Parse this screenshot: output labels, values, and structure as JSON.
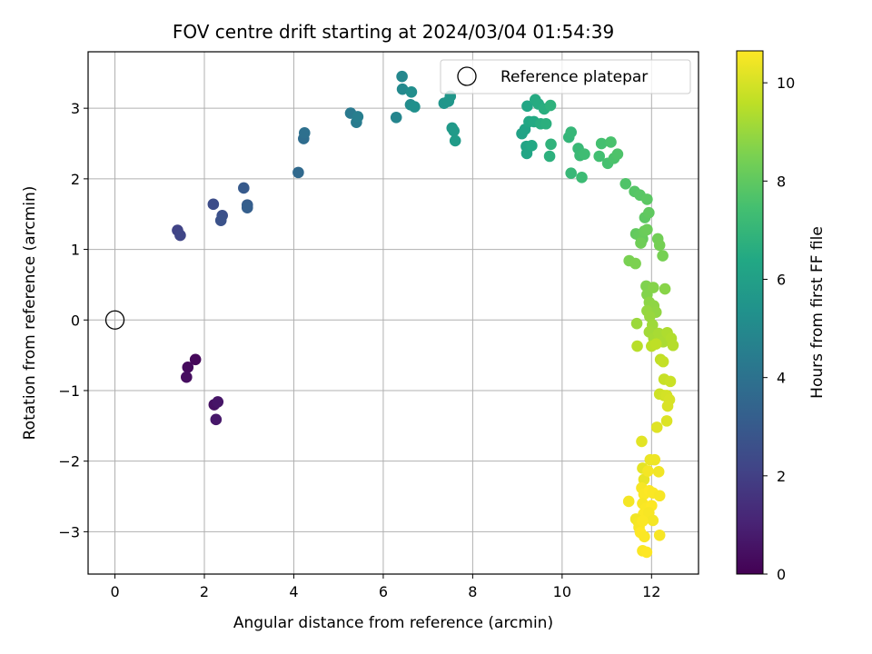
{
  "chart_data": {
    "type": "scatter",
    "title": "FOV centre drift starting at 2024/03/04 01:54:39",
    "xlabel": "Angular distance from reference (arcmin)",
    "ylabel": "Rotation from reference (arcmin)",
    "xlim": [
      -0.6,
      13.05
    ],
    "ylim": [
      -3.6,
      3.8
    ],
    "xticks": [
      0,
      2,
      4,
      6,
      8,
      10,
      12
    ],
    "yticks": [
      -3,
      -2,
      -1,
      0,
      1,
      2,
      3
    ],
    "xtick_labels": [
      "0",
      "2",
      "4",
      "6",
      "8",
      "10",
      "12"
    ],
    "ytick_labels": [
      "−3",
      "−2",
      "−1",
      "0",
      "1",
      "2",
      "3"
    ],
    "grid": true,
    "colormap": "viridis",
    "colorbar": {
      "label": "Hours from first FF file",
      "range": [
        0,
        10.65
      ],
      "ticks": [
        0,
        2,
        4,
        6,
        8,
        10
      ],
      "tick_labels": [
        "0",
        "2",
        "4",
        "6",
        "8",
        "10"
      ]
    },
    "legend": {
      "position": "top-right",
      "entries": [
        "Reference platepar"
      ]
    },
    "reference": {
      "label": "Reference platepar",
      "x": 0,
      "y": 0
    },
    "series": [
      {
        "name": "",
        "points": [
          [
            1.8,
            -0.56,
            0.2
          ],
          [
            1.63,
            -0.67,
            0.3
          ],
          [
            1.6,
            -0.81,
            0.4
          ],
          [
            2.22,
            -1.2,
            0.5
          ],
          [
            2.3,
            -1.16,
            0.6
          ],
          [
            2.26,
            -1.41,
            0.7
          ],
          [
            1.4,
            1.27,
            2.1
          ],
          [
            1.46,
            1.2,
            2.2
          ],
          [
            2.2,
            1.64,
            2.5
          ],
          [
            2.4,
            1.48,
            2.6
          ],
          [
            2.37,
            1.41,
            2.7
          ],
          [
            2.88,
            1.87,
            3.0
          ],
          [
            2.96,
            1.63,
            3.1
          ],
          [
            2.96,
            1.59,
            3.2
          ],
          [
            4.1,
            2.09,
            3.6
          ],
          [
            4.22,
            2.57,
            3.8
          ],
          [
            4.24,
            2.65,
            3.9
          ],
          [
            5.27,
            2.93,
            4.3
          ],
          [
            5.4,
            2.8,
            4.4
          ],
          [
            5.43,
            2.88,
            4.5
          ],
          [
            6.29,
            2.87,
            4.8
          ],
          [
            6.42,
            3.45,
            4.9
          ],
          [
            6.43,
            3.27,
            5.0
          ],
          [
            6.61,
            3.05,
            5.1
          ],
          [
            6.63,
            3.23,
            5.2
          ],
          [
            6.7,
            3.02,
            5.3
          ],
          [
            7.36,
            3.07,
            5.5
          ],
          [
            7.46,
            3.1,
            5.55
          ],
          [
            7.5,
            3.17,
            5.6
          ],
          [
            7.54,
            2.72,
            5.7
          ],
          [
            7.58,
            2.68,
            5.75
          ],
          [
            7.61,
            2.54,
            5.8
          ],
          [
            9.1,
            2.64,
            6.1
          ],
          [
            9.17,
            2.7,
            6.15
          ],
          [
            9.2,
            2.46,
            6.2
          ],
          [
            9.21,
            2.36,
            6.25
          ],
          [
            9.22,
            3.03,
            6.3
          ],
          [
            9.26,
            2.81,
            6.35
          ],
          [
            9.32,
            2.47,
            6.4
          ],
          [
            9.37,
            2.81,
            6.45
          ],
          [
            9.4,
            3.12,
            6.5
          ],
          [
            9.47,
            3.06,
            6.55
          ],
          [
            9.52,
            2.78,
            6.6
          ],
          [
            9.6,
            2.99,
            6.65
          ],
          [
            9.64,
            2.78,
            6.7
          ],
          [
            9.72,
            2.32,
            6.75
          ],
          [
            9.74,
            3.04,
            6.8
          ],
          [
            9.75,
            2.49,
            6.85
          ],
          [
            10.15,
            2.59,
            7.0
          ],
          [
            10.2,
            2.66,
            7.05
          ],
          [
            10.2,
            2.08,
            7.1
          ],
          [
            10.36,
            2.43,
            7.15
          ],
          [
            10.4,
            2.33,
            7.2
          ],
          [
            10.44,
            2.02,
            7.25
          ],
          [
            10.5,
            2.35,
            7.3
          ],
          [
            10.83,
            2.32,
            7.4
          ],
          [
            10.88,
            2.5,
            7.45
          ],
          [
            11.02,
            2.22,
            7.5
          ],
          [
            11.09,
            2.52,
            7.55
          ],
          [
            11.16,
            2.29,
            7.6
          ],
          [
            11.24,
            2.35,
            7.65
          ],
          [
            11.42,
            1.93,
            7.7
          ],
          [
            11.62,
            1.82,
            7.8
          ],
          [
            11.74,
            1.77,
            7.85
          ],
          [
            11.9,
            1.71,
            7.9
          ],
          [
            11.85,
            1.45,
            7.95
          ],
          [
            11.94,
            1.52,
            8.0
          ],
          [
            11.65,
            1.22,
            8.05
          ],
          [
            11.72,
            1.2,
            8.1
          ],
          [
            11.8,
            1.15,
            8.15
          ],
          [
            11.84,
            1.26,
            8.2
          ],
          [
            11.9,
            1.28,
            8.25
          ],
          [
            11.76,
            1.09,
            8.3
          ],
          [
            12.14,
            1.15,
            8.35
          ],
          [
            12.18,
            1.06,
            8.4
          ],
          [
            12.25,
            0.91,
            8.45
          ],
          [
            11.5,
            0.84,
            8.5
          ],
          [
            11.64,
            0.8,
            8.55
          ],
          [
            11.88,
            0.48,
            8.6
          ],
          [
            11.9,
            0.36,
            8.65
          ],
          [
            12.04,
            0.46,
            8.7
          ],
          [
            12.3,
            0.44,
            8.75
          ],
          [
            11.95,
            0.25,
            8.8
          ],
          [
            12.05,
            0.2,
            8.85
          ],
          [
            12.1,
            0.11,
            8.9
          ],
          [
            11.9,
            0.13,
            8.95
          ],
          [
            11.96,
            0.05,
            9.0
          ],
          [
            11.67,
            -0.05,
            9.05
          ],
          [
            12.02,
            -0.07,
            9.1
          ],
          [
            11.95,
            -0.17,
            9.15
          ],
          [
            12.05,
            -0.26,
            9.2
          ],
          [
            12.16,
            -0.19,
            9.25
          ],
          [
            12.26,
            -0.31,
            9.3
          ],
          [
            12.35,
            -0.18,
            9.35
          ],
          [
            12.44,
            -0.26,
            9.4
          ],
          [
            12.48,
            -0.36,
            9.45
          ],
          [
            11.68,
            -0.37,
            9.5
          ],
          [
            12.0,
            -0.37,
            9.55
          ],
          [
            12.1,
            -0.34,
            9.6
          ],
          [
            12.2,
            -0.56,
            9.65
          ],
          [
            12.26,
            -0.59,
            9.7
          ],
          [
            12.28,
            -0.84,
            9.75
          ],
          [
            12.42,
            -0.87,
            9.8
          ],
          [
            12.18,
            -1.05,
            9.85
          ],
          [
            12.28,
            -1.07,
            9.9
          ],
          [
            12.34,
            -1.07,
            9.95
          ],
          [
            12.4,
            -1.13,
            10.0
          ],
          [
            12.36,
            -1.22,
            10.05
          ],
          [
            12.34,
            -1.43,
            10.1
          ],
          [
            12.12,
            -1.52,
            10.15
          ],
          [
            11.78,
            -1.72,
            10.2
          ],
          [
            11.8,
            -2.1,
            10.25
          ],
          [
            11.83,
            -2.26,
            10.3
          ],
          [
            11.97,
            -1.98,
            10.35
          ],
          [
            12.07,
            -1.98,
            10.4
          ],
          [
            12.16,
            -2.15,
            10.45
          ],
          [
            11.92,
            -2.14,
            10.5
          ],
          [
            11.78,
            -2.38,
            10.55
          ],
          [
            11.83,
            -2.47,
            10.6
          ],
          [
            11.95,
            -2.42,
            10.65
          ],
          [
            12.03,
            -2.45,
            10.6
          ],
          [
            12.18,
            -2.49,
            10.55
          ],
          [
            11.49,
            -2.57,
            10.5
          ],
          [
            11.8,
            -2.6,
            10.55
          ],
          [
            11.87,
            -2.67,
            10.6
          ],
          [
            12.0,
            -2.63,
            10.65
          ],
          [
            11.82,
            -2.75,
            10.6
          ],
          [
            11.94,
            -2.73,
            10.55
          ],
          [
            12.03,
            -2.84,
            10.5
          ],
          [
            11.65,
            -2.82,
            10.45
          ],
          [
            11.71,
            -2.87,
            10.5
          ],
          [
            11.72,
            -2.94,
            10.55
          ],
          [
            11.8,
            -2.85,
            10.6
          ],
          [
            11.75,
            -3.01,
            10.65
          ],
          [
            11.84,
            -3.07,
            10.6
          ],
          [
            12.18,
            -3.05,
            10.55
          ],
          [
            11.8,
            -3.27,
            10.6
          ],
          [
            11.89,
            -3.29,
            10.65
          ]
        ]
      }
    ]
  }
}
